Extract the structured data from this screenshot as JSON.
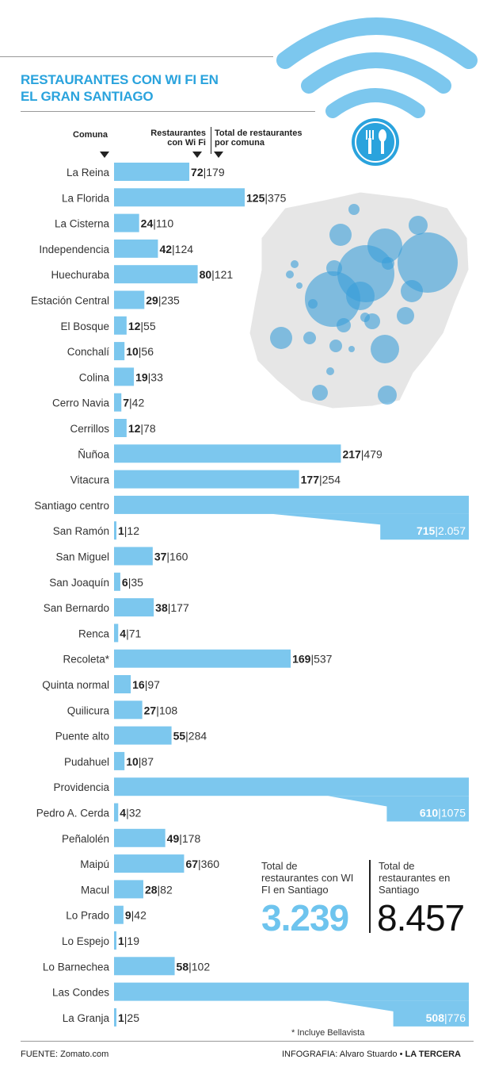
{
  "title": "RESTAURANTES CON WI FI EN EL GRAN SANTIAGO",
  "headers": {
    "comuna": "Comuna",
    "wifi": "Restaurantes con Wi Fi",
    "total": "Total de restaurantes por comuna"
  },
  "colors": {
    "accent": "#2aa3dd",
    "bar": "#7cc7ee",
    "bubble": "#3a9fd8",
    "map": "#e6e6e6"
  },
  "icon": "fork-knife-icon",
  "chart_data": {
    "type": "bar",
    "title": "RESTAURANTES CON WI FI EN EL GRAN SANTIAGO",
    "xlabel": "",
    "ylabel": "",
    "series": [
      {
        "name": "Restaurantes con Wi Fi"
      },
      {
        "name": "Total de restaurantes por comuna"
      }
    ],
    "rows": [
      {
        "label": "La Reina",
        "wifi": 72,
        "total": "179"
      },
      {
        "label": "La Florida",
        "wifi": 125,
        "total": "375"
      },
      {
        "label": "La Cisterna",
        "wifi": 24,
        "total": "110"
      },
      {
        "label": "Independencia",
        "wifi": 42,
        "total": "124"
      },
      {
        "label": "Huechuraba",
        "wifi": 80,
        "total": "121"
      },
      {
        "label": "Estación Central",
        "wifi": 29,
        "total": "235"
      },
      {
        "label": "El Bosque",
        "wifi": 12,
        "total": "55"
      },
      {
        "label": "Conchalí",
        "wifi": 10,
        "total": "56"
      },
      {
        "label": "Colina",
        "wifi": 19,
        "total": "33"
      },
      {
        "label": "Cerro Navia",
        "wifi": 7,
        "total": "42"
      },
      {
        "label": "Cerrillos",
        "wifi": 12,
        "total": "78"
      },
      {
        "label": "Ñuñoa",
        "wifi": 217,
        "total": "479"
      },
      {
        "label": "Vitacura",
        "wifi": 177,
        "total": "254"
      },
      {
        "label": "Santiago centro",
        "wifi": 715,
        "total": "2.057",
        "broken": true
      },
      {
        "label": "San Ramón",
        "wifi": 1,
        "total": "12"
      },
      {
        "label": "San Miguel",
        "wifi": 37,
        "total": "160"
      },
      {
        "label": "San Joaquín",
        "wifi": 6,
        "total": "35"
      },
      {
        "label": "San Bernardo",
        "wifi": 38,
        "total": "177"
      },
      {
        "label": "Renca",
        "wifi": 4,
        "total": "71"
      },
      {
        "label": "Recoleta*",
        "wifi": 169,
        "total": "537"
      },
      {
        "label": "Quinta normal",
        "wifi": 16,
        "total": "97"
      },
      {
        "label": "Quilicura",
        "wifi": 27,
        "total": "108"
      },
      {
        "label": "Puente alto",
        "wifi": 55,
        "total": "284"
      },
      {
        "label": "Pudahuel",
        "wifi": 10,
        "total": "87"
      },
      {
        "label": "Providencia",
        "wifi": 610,
        "total": "1075",
        "broken": true
      },
      {
        "label": "Pedro A. Cerda",
        "wifi": 4,
        "total": "32"
      },
      {
        "label": "Peñalolén",
        "wifi": 49,
        "total": "178"
      },
      {
        "label": "Maipú",
        "wifi": 67,
        "total": "360"
      },
      {
        "label": "Macul",
        "wifi": 28,
        "total": "82"
      },
      {
        "label": "Lo Prado",
        "wifi": 9,
        "total": "42"
      },
      {
        "label": "Lo Espejo",
        "wifi": 1,
        "total": "19"
      },
      {
        "label": "Lo Barnechea",
        "wifi": 58,
        "total": "102"
      },
      {
        "label": "Las Condes",
        "wifi": 508,
        "total": "776",
        "broken": true
      },
      {
        "label": "La Granja",
        "wifi": 1,
        "total": "25"
      }
    ]
  },
  "totals": {
    "wifi_label": "Total de restaurantes con WI FI en Santiago",
    "wifi_value": "3.239",
    "all_label": "Total de restaurantes en Santiago",
    "all_value": "8.457"
  },
  "footnote": "* Incluye Bellavista",
  "source": "FUENTE: Zomato.com",
  "credit_author": "INFOGRAFIA: Alvaro Stuardo",
  "credit_paper": "LA TERCERA"
}
